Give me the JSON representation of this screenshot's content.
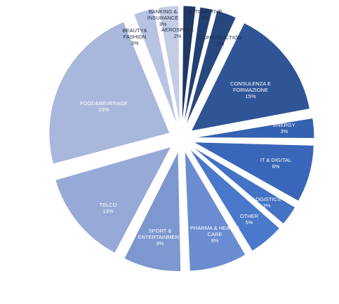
{
  "chart_data": {
    "type": "pie",
    "exploded": true,
    "start": "12 o'clock, clockwise",
    "slices": [
      {
        "label": "AEROSPACE",
        "value": 2,
        "value_label": "2%",
        "color": "#203864",
        "text_color": "#1f2a44"
      },
      {
        "label": "AUTOMOTIVE",
        "value": 2,
        "value_label": "2%",
        "color": "#243f73",
        "text_color": "#1f2a44"
      },
      {
        "label": "CONSTRUCTION",
        "value": 3,
        "value_label": "3%",
        "color": "#27477f",
        "text_color": "#1f2a44"
      },
      {
        "label": "CONSULENZA E FORMAZIONE",
        "value": 15,
        "value_label": "15%",
        "color": "#2f5597",
        "text_color": "#ffffff"
      },
      {
        "label": "ENERGY",
        "value": 3,
        "value_label": "3%",
        "color": "#3461b0",
        "text_color": "#ffffff"
      },
      {
        "label": "IT & DIGITAL",
        "value": 8,
        "value_label": "8%",
        "color": "#3966b8",
        "text_color": "#ffffff"
      },
      {
        "label": "LOGISTICS",
        "value": 3,
        "value_label": "3%",
        "color": "#4472c4",
        "text_color": "#ffffff"
      },
      {
        "label": "OTHER",
        "value": 5,
        "value_label": "5%",
        "color": "#4a78ca",
        "text_color": "#ffffff"
      },
      {
        "label": "PHARMA & HEALTH CARE",
        "value": 8,
        "value_label": "8%",
        "color": "#6a8cd0",
        "text_color": "#ffffff"
      },
      {
        "label": "SPORT & ENTERTAINMENT",
        "value": 8,
        "value_label": "8%",
        "color": "#7d97cf",
        "text_color": "#ffffff"
      },
      {
        "label": "TELCO",
        "value": 13,
        "value_label": "13%",
        "color": "#97a9d7",
        "text_color": "#ffffff"
      },
      {
        "label": "FOOD&BEVERAGE",
        "value": 23,
        "value_label": "23%",
        "color": "#a9b7dc",
        "text_color": "#ffffff"
      },
      {
        "label": "BEAUTY& FASHION",
        "value": 3,
        "value_label": "3%",
        "color": "#b7c3e2",
        "text_color": "#1f2a44"
      },
      {
        "label": "BANKING & INSURANCE",
        "value": 3,
        "value_label": "3%",
        "color": "#c3cde6",
        "text_color": "#1f2a44"
      }
    ]
  }
}
